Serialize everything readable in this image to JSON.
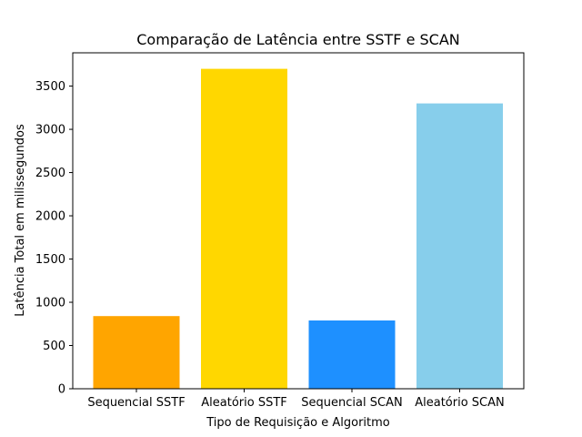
{
  "chart_data": {
    "type": "bar",
    "title": "Comparação de Latência entre SSTF e SCAN",
    "xlabel": "Tipo de Requisição e Algoritmo",
    "ylabel": "Latência Total em milissegundos",
    "categories": [
      "Sequencial SSTF",
      "Aleatório SSTF",
      "Sequencial SCAN",
      "Aleatório SCAN"
    ],
    "values": [
      840,
      3700,
      790,
      3300
    ],
    "colors": [
      "#FFA500",
      "#FFD700",
      "#1E90FF",
      "#87CEEB"
    ],
    "yticks": [
      "0",
      "500",
      "1000",
      "1500",
      "2000",
      "2500",
      "3000",
      "3500"
    ],
    "ylim": [
      0,
      3885
    ],
    "grid": false,
    "legend": "none"
  }
}
